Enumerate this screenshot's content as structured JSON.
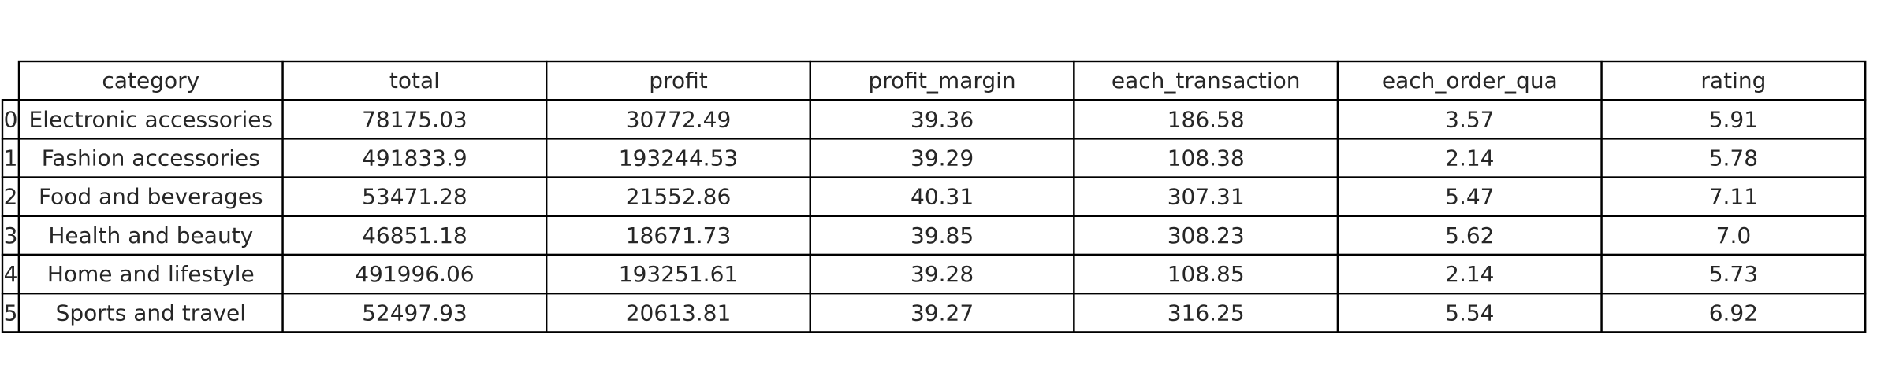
{
  "chart_data": {
    "type": "table",
    "columns": [
      "category",
      "total",
      "profit",
      "profit_margin",
      "each_transaction",
      "each_order_qua",
      "rating"
    ],
    "row_index": [
      "0",
      "1",
      "2",
      "3",
      "4",
      "5"
    ],
    "rows": [
      [
        "Electronic accessories",
        "78175.03",
        "30772.49",
        "39.36",
        "186.58",
        "3.57",
        "5.91"
      ],
      [
        "Fashion accessories",
        "491833.9",
        "193244.53",
        "39.29",
        "108.38",
        "2.14",
        "5.78"
      ],
      [
        "Food and beverages",
        "53471.28",
        "21552.86",
        "40.31",
        "307.31",
        "5.47",
        "7.11"
      ],
      [
        "Health and beauty",
        "46851.18",
        "18671.73",
        "39.85",
        "308.23",
        "5.62",
        "7.0"
      ],
      [
        "Home and lifestyle",
        "491996.06",
        "193251.61",
        "39.28",
        "108.85",
        "2.14",
        "5.73"
      ],
      [
        "Sports and travel",
        "52497.93",
        "20613.81",
        "39.27",
        "316.25",
        "5.54",
        "6.92"
      ]
    ]
  }
}
